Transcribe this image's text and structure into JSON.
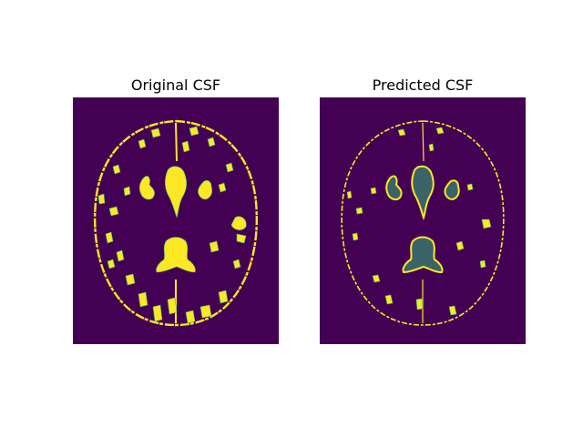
{
  "figure": {
    "panels": [
      {
        "title": "Original CSF"
      },
      {
        "title": "Predicted CSF"
      }
    ]
  },
  "colors": {
    "background": "#440154",
    "csf": "#fde725",
    "edge": "#35b779"
  }
}
